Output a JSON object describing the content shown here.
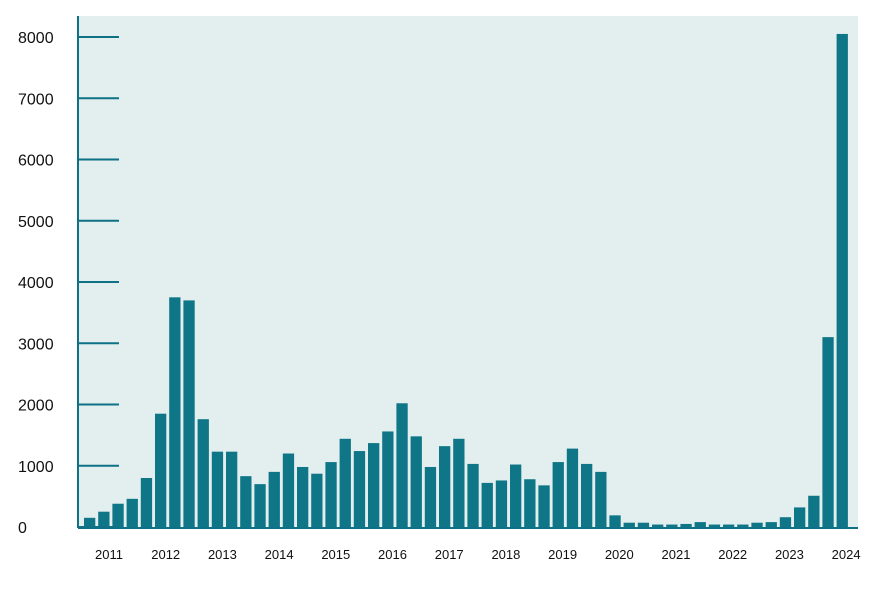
{
  "chart_data": {
    "type": "bar",
    "title": "",
    "xlabel": "",
    "ylabel": "",
    "ylim": [
      0,
      8000
    ],
    "yticks": [
      0,
      1000,
      2000,
      3000,
      4000,
      5000,
      6000,
      7000,
      8000
    ],
    "xtick_labels": [
      "2011",
      "2012",
      "2013",
      "2014",
      "2015",
      "2016",
      "2017",
      "2018",
      "2019",
      "2020",
      "2021",
      "2022",
      "2023",
      "2024"
    ],
    "values": [
      150,
      250,
      380,
      460,
      800,
      1850,
      3750,
      3700,
      1760,
      1230,
      1230,
      830,
      700,
      900,
      1200,
      980,
      870,
      1060,
      1440,
      1240,
      1370,
      1560,
      2020,
      1480,
      980,
      1320,
      1440,
      1030,
      720,
      760,
      1020,
      780,
      680,
      1060,
      1280,
      1030,
      900,
      190,
      70,
      70,
      40,
      40,
      50,
      80,
      40,
      40,
      40,
      70,
      80,
      160,
      320,
      510,
      3100,
      8050
    ],
    "grid": false,
    "legend": "none",
    "colors": {
      "bar": "#0f7687",
      "plot_background": "#e3efef",
      "axis": "#0e7186"
    }
  }
}
